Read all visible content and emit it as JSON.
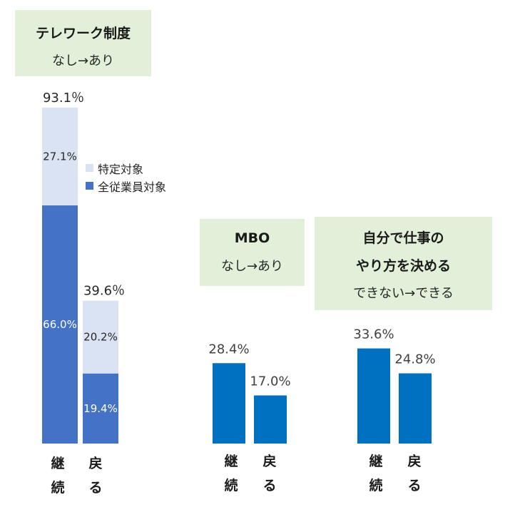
{
  "colors": {
    "specific": "#dae3f3",
    "all": "#4472c4",
    "bar": "#0070c0",
    "box": "#e2efd9"
  },
  "boxes": {
    "telework": {
      "title": "テレワーク制度",
      "sub": "なし→あり"
    },
    "mbo": {
      "title": "MBO",
      "sub": "なし→あり"
    },
    "discretion": {
      "title1": "自分で仕事の",
      "title2": "やり方を決める",
      "sub": "できない→できる"
    }
  },
  "legend": {
    "specific": "特定対象",
    "all": "全従業員対象"
  },
  "chart_data": [
    {
      "type": "bar",
      "stacked": true,
      "categories": [
        "継続",
        "戻る"
      ],
      "series": [
        {
          "name": "全従業員対象",
          "values": [
            66.0,
            19.4
          ]
        },
        {
          "name": "特定対象",
          "values": [
            27.1,
            20.2
          ]
        }
      ],
      "totals": [
        93.1,
        39.6
      ],
      "value_labels": {
        "all": [
          "66.0%",
          "19.4%"
        ],
        "specific": [
          "27.1%",
          "20.2%"
        ],
        "totals": [
          "93.1％",
          "39.6％"
        ]
      }
    },
    {
      "type": "bar",
      "categories": [
        "継続",
        "戻る"
      ],
      "values": [
        28.4,
        17.0
      ],
      "value_labels": [
        "28.4%",
        "17.0%"
      ]
    },
    {
      "type": "bar",
      "categories": [
        "継続",
        "戻る"
      ],
      "values": [
        33.6,
        24.8
      ],
      "value_labels": [
        "33.6%",
        "24.8%"
      ]
    }
  ],
  "xlabels": {
    "cont": [
      "継",
      "続"
    ],
    "back": [
      "戻",
      "る"
    ]
  }
}
